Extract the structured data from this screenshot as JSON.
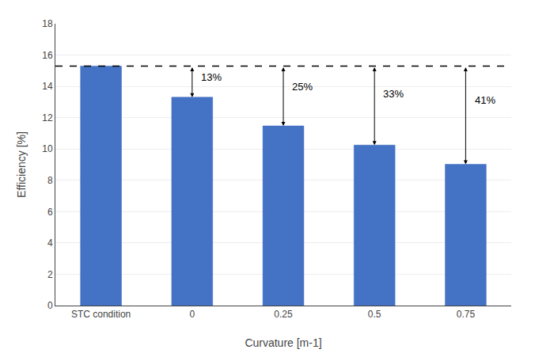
{
  "chart_data": {
    "type": "bar",
    "categories": [
      "STC condition",
      "0",
      "0.25",
      "0.5",
      "0.75"
    ],
    "values": [
      15.3,
      13.31,
      11.475,
      10.25,
      9.027
    ],
    "color": "#4472C4",
    "reference_line": 15.3,
    "annotations": [
      {
        "label": "13%",
        "category": "0"
      },
      {
        "label": "25%",
        "category": "0.25"
      },
      {
        "label": "33%",
        "category": "0.5"
      },
      {
        "label": "41%",
        "category": "0.75"
      }
    ],
    "xlabel": "Curvature [m-1]",
    "ylabel": "Efficiency [%]",
    "ylim": [
      0,
      18
    ],
    "yticks": [
      0,
      2,
      4,
      6,
      8,
      10,
      12,
      14,
      16,
      18
    ],
    "grid": true
  }
}
